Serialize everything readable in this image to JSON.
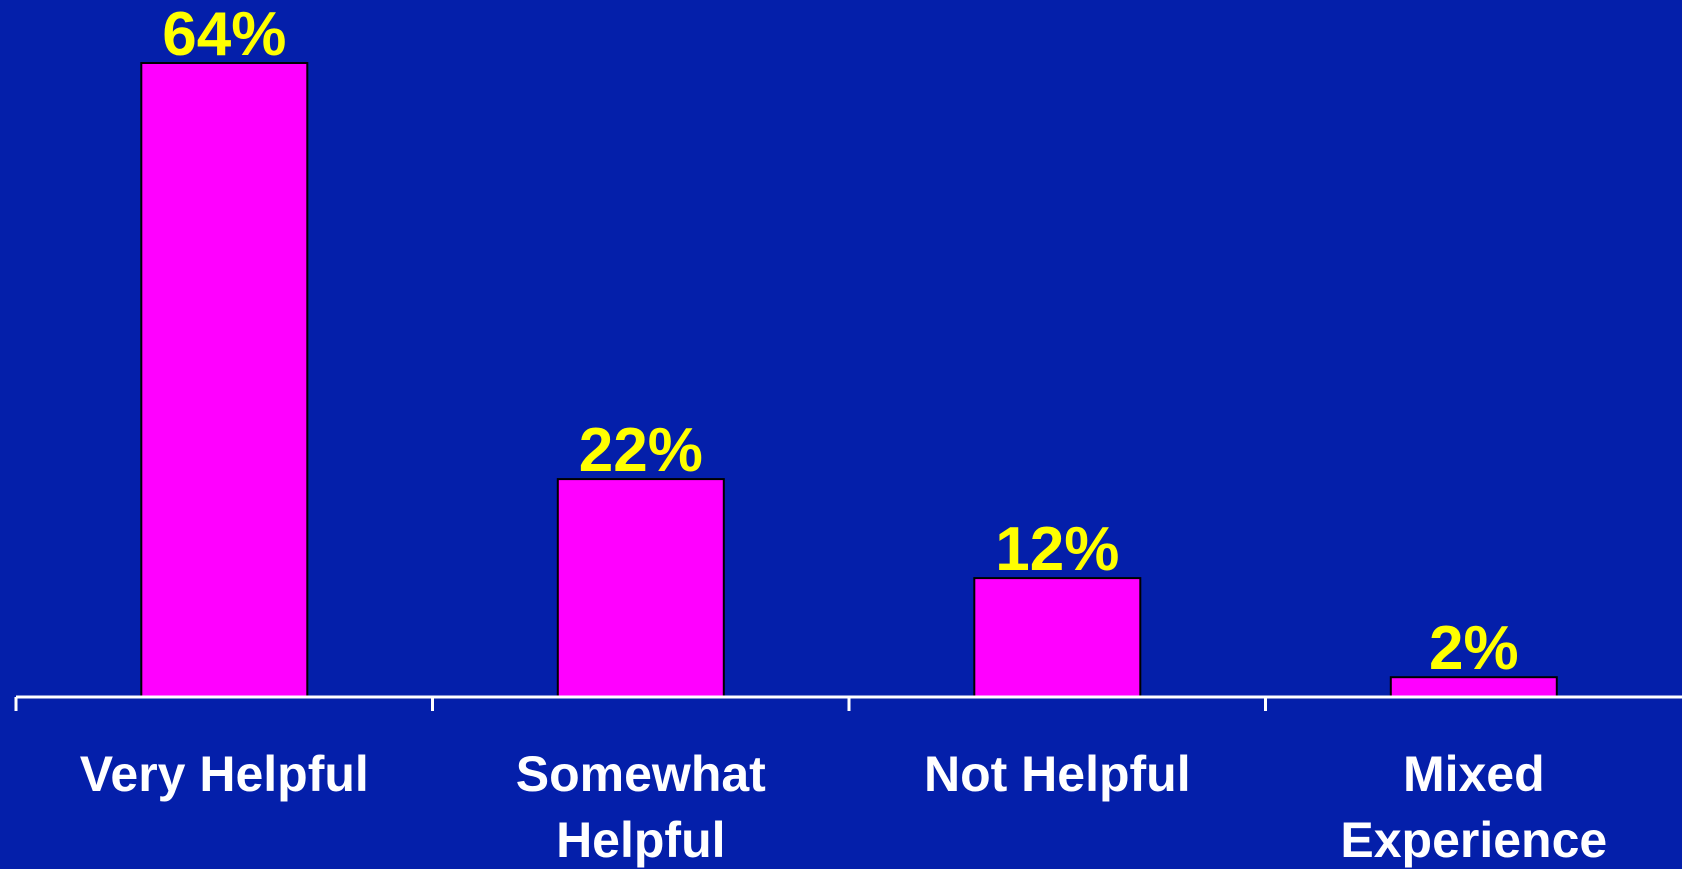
{
  "colors": {
    "background": "#041faa",
    "bar": "#ff00ff",
    "bar_border": "#000000",
    "value_label": "#ffff00",
    "category_label": "#ffffff",
    "axis": "#ffffff"
  },
  "chart_data": {
    "type": "bar",
    "categories": [
      "Very Helpful",
      "Somewhat Helpful",
      "Not Helpful",
      "Mixed Experience"
    ],
    "values": [
      64,
      22,
      12,
      2
    ],
    "value_labels": [
      "64%",
      "22%",
      "12%",
      "2%"
    ],
    "title": "",
    "xlabel": "",
    "ylabel": "",
    "ylim": [
      0,
      64
    ],
    "grid": false,
    "legend": "none"
  }
}
